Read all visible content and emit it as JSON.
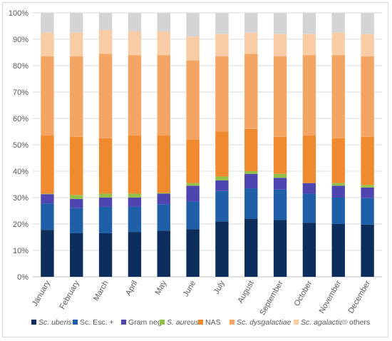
{
  "chart_data": {
    "type": "bar",
    "stacked": true,
    "percent_stacked": true,
    "title": "",
    "xlabel": "",
    "ylabel": "",
    "ylim": [
      0,
      100
    ],
    "y_tick_labels": [
      "0%",
      "10%",
      "20%",
      "30%",
      "40%",
      "50%",
      "60%",
      "70%",
      "80%",
      "90%",
      "100%"
    ],
    "grid": "horizontal",
    "legend_position": "bottom",
    "categories": [
      "January",
      "February",
      "March",
      "April",
      "May",
      "June",
      "July",
      "August",
      "September",
      "October",
      "November",
      "December"
    ],
    "series": [
      {
        "name": "Sc. uberis",
        "italic": true,
        "color": "#0d2d5c",
        "values": [
          17.8,
          16.5,
          16.5,
          17.0,
          17.5,
          18.0,
          21.0,
          22.0,
          21.5,
          20.5,
          20.0,
          19.8
        ]
      },
      {
        "name": "Sc. Esc. +",
        "italic": false,
        "color": "#1f5fa8",
        "values": [
          10.0,
          9.5,
          10.0,
          9.5,
          10.0,
          10.5,
          11.5,
          11.5,
          11.5,
          11.0,
          10.0,
          10.0
        ]
      },
      {
        "name": "Gram neg.",
        "italic": false,
        "color": "#4f45b0",
        "values": [
          3.5,
          3.5,
          3.5,
          3.5,
          4.0,
          6.0,
          4.0,
          5.5,
          4.5,
          4.0,
          4.5,
          4.0
        ]
      },
      {
        "name": "S. aureus",
        "italic": true,
        "color": "#92c049",
        "values": [
          0.2,
          1.5,
          1.5,
          1.5,
          0.3,
          1.0,
          1.5,
          1.0,
          1.5,
          0.0,
          1.0,
          1.0
        ]
      },
      {
        "name": "NAS",
        "italic": false,
        "color": "#f08a2e",
        "values": [
          22.0,
          22.0,
          21.0,
          22.0,
          21.7,
          16.5,
          17.0,
          16.0,
          14.0,
          18.0,
          17.0,
          18.2
        ]
      },
      {
        "name": "Sc. dysgalactiae",
        "italic": true,
        "color": "#f4a564",
        "values": [
          30.0,
          30.5,
          32.0,
          30.5,
          30.5,
          30.0,
          28.5,
          28.5,
          30.5,
          30.5,
          31.5,
          30.5
        ]
      },
      {
        "name": "Sc. agalactiae",
        "italic": true,
        "color": "#f8cca5",
        "values": [
          9.0,
          9.0,
          9.0,
          9.0,
          9.0,
          9.0,
          8.5,
          8.0,
          8.5,
          8.0,
          8.5,
          8.5
        ]
      },
      {
        "name": "others",
        "italic": false,
        "color": "#d4d4d4",
        "values": [
          7.5,
          7.5,
          6.5,
          7.0,
          7.0,
          9.0,
          8.0,
          7.5,
          8.0,
          8.0,
          7.5,
          8.0
        ]
      }
    ]
  }
}
